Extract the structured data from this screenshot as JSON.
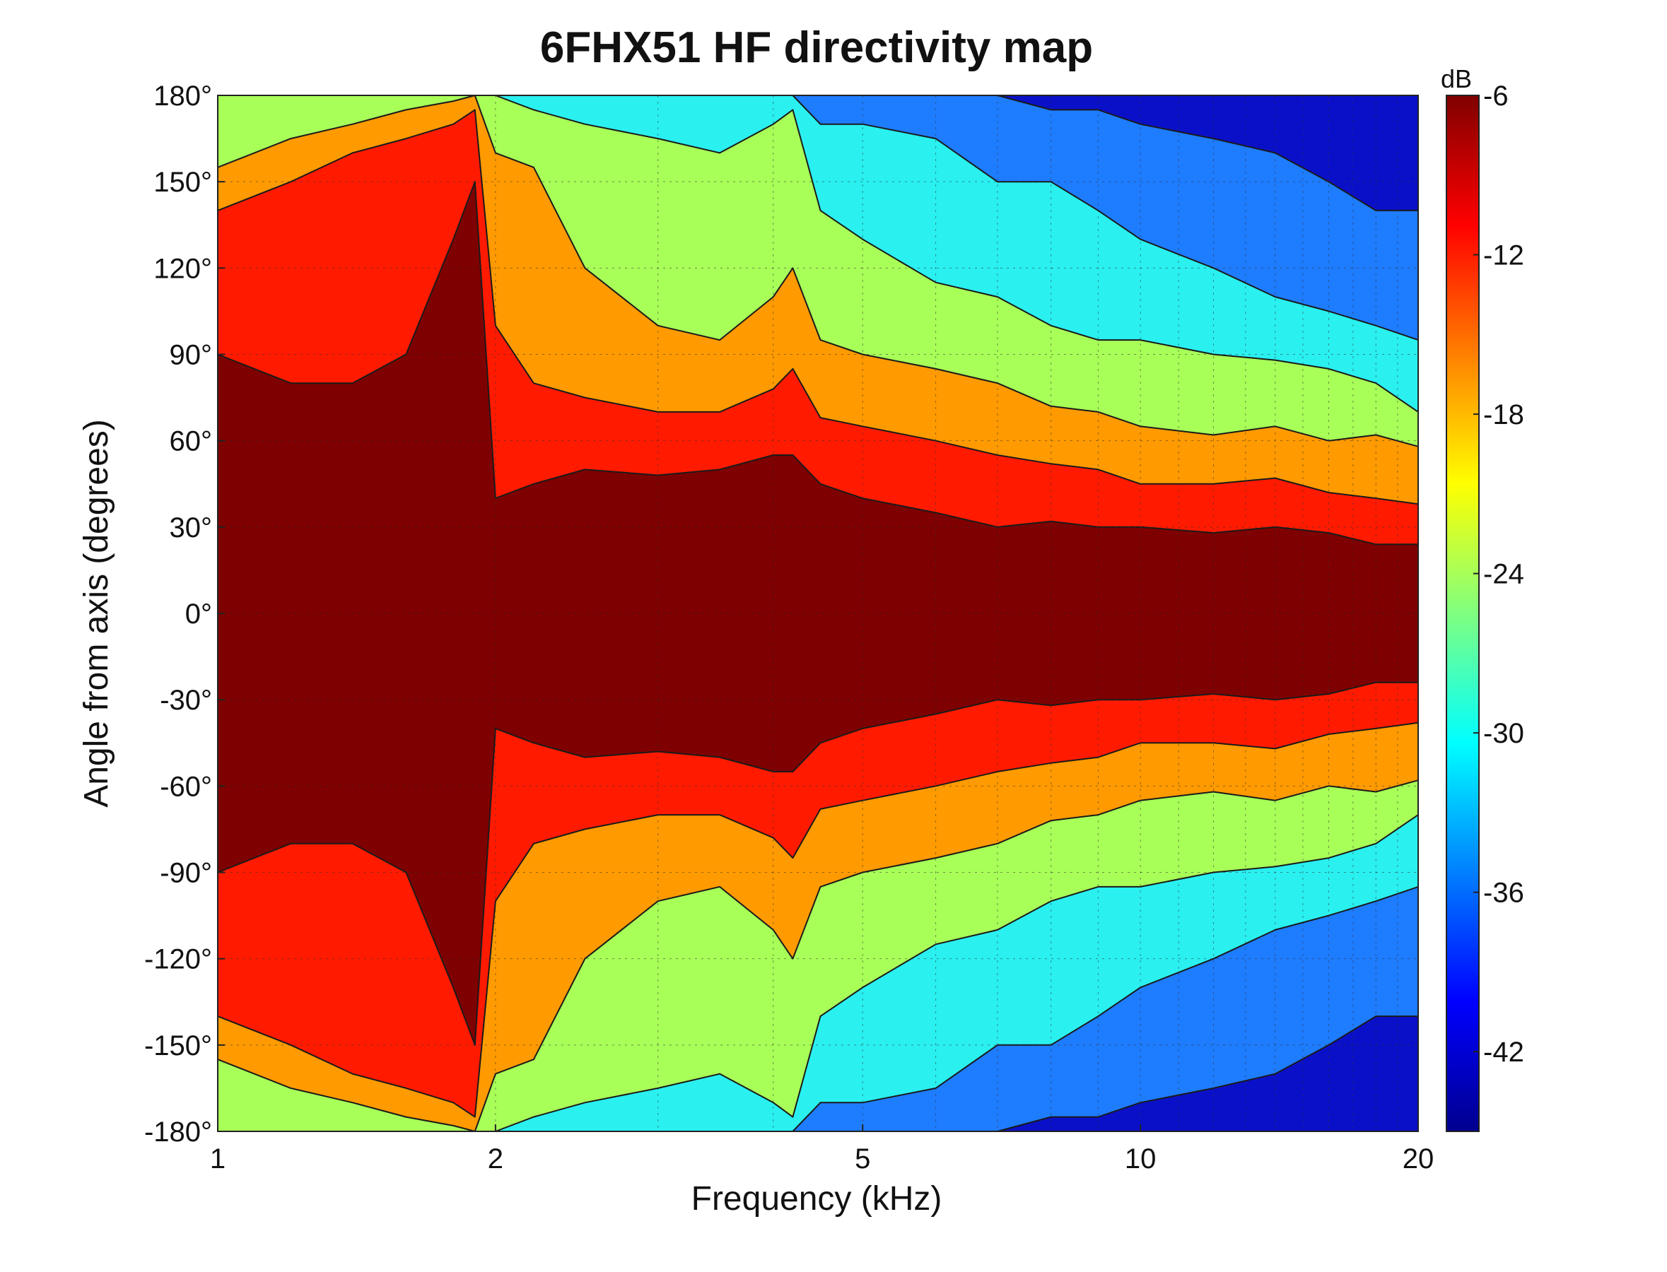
{
  "chart_data": {
    "type": "heatmap",
    "title": "6FHX51 HF directivity map",
    "xlabel": "Frequency (kHz)",
    "ylabel": "Angle from axis (degrees)",
    "x_scale": "log",
    "xlim": [
      1,
      20
    ],
    "ylim": [
      -180,
      180
    ],
    "grid": true,
    "x_tick_labels": [
      {
        "value": 1,
        "label": "1"
      },
      {
        "value": 2,
        "label": "2"
      },
      {
        "value": 5,
        "label": "5"
      },
      {
        "value": 10,
        "label": "10"
      },
      {
        "value": 20,
        "label": "20"
      }
    ],
    "y_tick_labels": [
      {
        "value": 180,
        "label": "180°"
      },
      {
        "value": 150,
        "label": "150°"
      },
      {
        "value": 120,
        "label": "120°"
      },
      {
        "value": 90,
        "label": "90°"
      },
      {
        "value": 60,
        "label": "60°"
      },
      {
        "value": 30,
        "label": "30°"
      },
      {
        "value": 0,
        "label": "0°"
      },
      {
        "value": -30,
        "label": "-30°"
      },
      {
        "value": -60,
        "label": "-60°"
      },
      {
        "value": -90,
        "label": "-90°"
      },
      {
        "value": -120,
        "label": "-120°"
      },
      {
        "value": -150,
        "label": "-150°"
      },
      {
        "value": -180,
        "label": "-180°"
      }
    ],
    "colorbar": {
      "unit": "dB",
      "range": [
        -45,
        -6
      ],
      "ticks": [
        -6,
        -12,
        -18,
        -24,
        -30,
        -36,
        -42
      ],
      "colormap": "jet"
    },
    "contour_levels_db": [
      -9,
      -15,
      -21,
      -27,
      -33,
      -39
    ],
    "band_colors": [
      "#7f0000",
      "#ff1a00",
      "#ff9a00",
      "#a8ff58",
      "#2af0f0",
      "#1e7cff",
      "#0a10c8"
    ],
    "contours": {
      "description_of_values": "angle (degrees, positive half; pattern is mirrored about 0°) at which the response falls to each level, per frequency",
      "freq_khz": [
        1,
        1.2,
        1.4,
        1.6,
        1.8,
        1.9,
        2.0,
        2.2,
        2.5,
        3.0,
        3.5,
        4.0,
        4.2,
        4.5,
        5.0,
        6.0,
        7.0,
        8.0,
        9.0,
        10.0,
        12.0,
        14.0,
        16.0,
        18.0,
        20.0
      ],
      "level_-9": [
        90,
        80,
        80,
        90,
        130,
        150,
        40,
        45,
        50,
        48,
        50,
        55,
        55,
        45,
        40,
        35,
        30,
        32,
        30,
        30,
        28,
        30,
        28,
        24,
        24
      ],
      "level_-15": [
        140,
        150,
        160,
        165,
        170,
        175,
        100,
        80,
        75,
        70,
        70,
        78,
        85,
        68,
        65,
        60,
        55,
        52,
        50,
        45,
        45,
        47,
        42,
        40,
        38
      ],
      "level_-21": [
        155,
        165,
        170,
        175,
        178,
        180,
        160,
        155,
        120,
        100,
        95,
        110,
        120,
        95,
        90,
        85,
        80,
        72,
        70,
        65,
        62,
        65,
        60,
        62,
        58
      ],
      "level_-27": [
        180,
        180,
        180,
        180,
        180,
        180,
        180,
        175,
        170,
        165,
        160,
        170,
        175,
        140,
        130,
        115,
        110,
        100,
        95,
        95,
        90,
        88,
        85,
        80,
        70
      ],
      "level_-33": [
        180,
        180,
        180,
        180,
        180,
        180,
        180,
        180,
        180,
        180,
        180,
        180,
        180,
        170,
        170,
        165,
        150,
        150,
        140,
        130,
        120,
        110,
        105,
        100,
        95
      ],
      "level_-39": [
        180,
        180,
        180,
        180,
        180,
        180,
        180,
        180,
        180,
        180,
        180,
        180,
        180,
        180,
        180,
        180,
        180,
        175,
        175,
        170,
        165,
        160,
        150,
        140,
        140
      ]
    }
  }
}
